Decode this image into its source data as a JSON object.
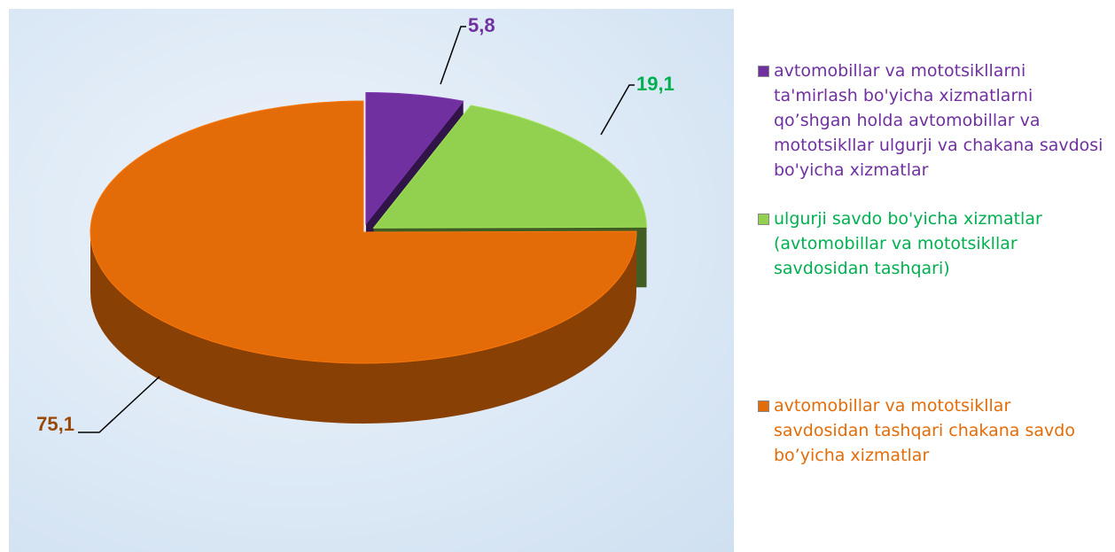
{
  "chart_data": {
    "type": "pie",
    "categories": [
      "avtomobillar va mototsikllarni ta'mirlash bo'yicha xizmatlarni qo’shgan holda avtomobillar va mototsikllar ulgurji va chakana savdosi bo'yicha xizmatlar",
      "ulgurji savdo bo'yicha xizmatlar (avtomobillar va mototsikllar savdosidan tashqari)",
      "avtomobillar va mototsikllar savdosidan tashqari chakana savdo bo’yicha xizmatlar"
    ],
    "values": [
      5.8,
      19.1,
      75.1
    ],
    "value_labels": [
      "5,8",
      "19,1",
      "75,1"
    ],
    "colors": [
      "#7030a0",
      "#92d050",
      "#e36c09"
    ],
    "label_colors": [
      "#7030a0",
      "#00b050",
      "#984807"
    ],
    "legend_text_colors": [
      "#7030a0",
      "#00b050",
      "#e36c09"
    ],
    "legend": "right"
  }
}
